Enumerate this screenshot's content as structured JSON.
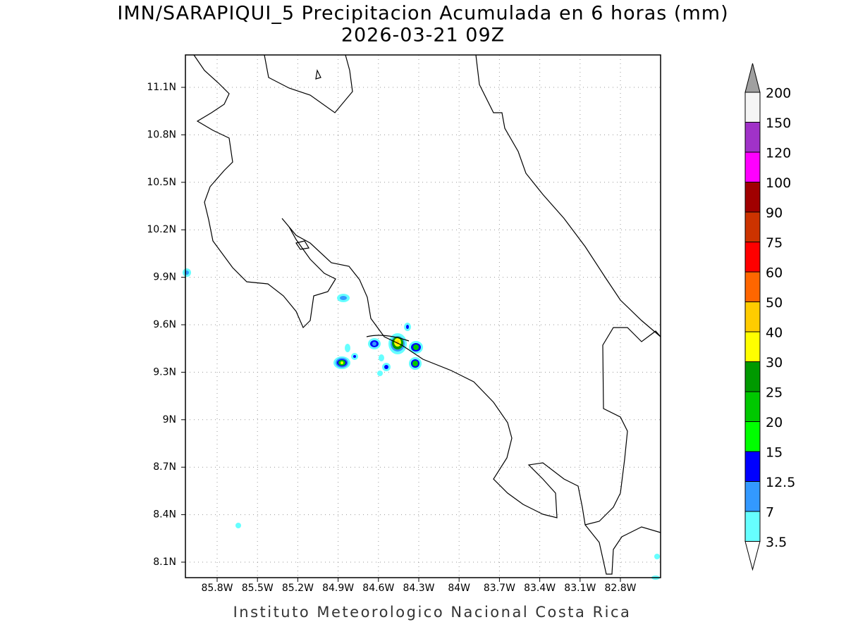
{
  "map": {
    "title": "IMN/SARAPIQUI_5 Precipitacion Acumulada en 6 horas (mm)",
    "subtitle": "2026-03-21 09Z",
    "lon_labels": [
      "85.8W",
      "85.5W",
      "85.2W",
      "84.9W",
      "84.6W",
      "84.3W",
      "84W",
      "83.7W",
      "83.4W",
      "83.1W",
      "82.8W"
    ],
    "lat_labels": [
      "11.1N",
      "10.8N",
      "10.5N",
      "10.2N",
      "9.9N",
      "9.6N",
      "9.3N",
      "9N",
      "8.7N",
      "8.4N",
      "8.1N"
    ],
    "colorbar": {
      "labels": [
        "200",
        "150",
        "120",
        "100",
        "90",
        "75",
        "60",
        "50",
        "40",
        "30",
        "25",
        "20",
        "15",
        "12.5",
        "7",
        "3.5"
      ],
      "colors": [
        "#f5f5f5",
        "#a032c8",
        "#ff00ff",
        "#a00000",
        "#cc3300",
        "#ff0000",
        "#ff6600",
        "#ffcc00",
        "#ffff00",
        "#009900",
        "#00c800",
        "#00ff00",
        "#0000ff",
        "#3399ff",
        "#66ffff"
      ],
      "over_color": "#a0a0a0",
      "under_color": "#ffffff"
    },
    "footer": "Instituto Meteorologico Nacional Costa Rica"
  }
}
